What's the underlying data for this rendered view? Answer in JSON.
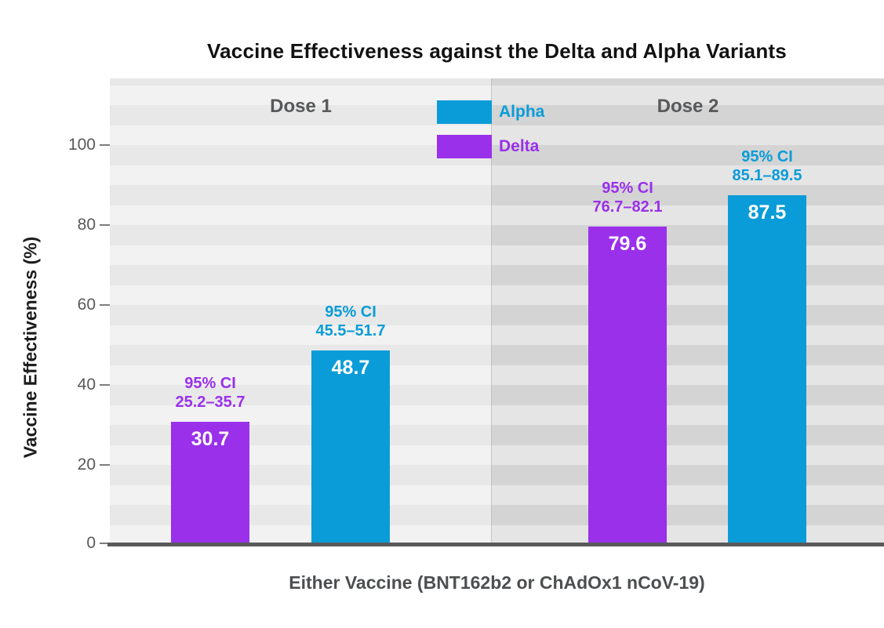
{
  "title": "Vaccine Effectiveness against the Delta and Alpha Variants",
  "axes": {
    "ylabel": "Vaccine Effectiveness (%)",
    "xlabel": "Either Vaccine (BNT162b2 or ChAdOx1 nCoV-19)",
    "yticks": [
      "100",
      "80",
      "60",
      "40",
      "20",
      "0"
    ]
  },
  "panels": [
    {
      "label": "Dose 1"
    },
    {
      "label": "Dose 2"
    }
  ],
  "legend": {
    "items": [
      {
        "label": "Alpha",
        "color": "#0a9cd8"
      },
      {
        "label": "Delta",
        "color": "#9a30ea"
      }
    ]
  },
  "ci_heading": "95% CI",
  "chart_data": {
    "type": "bar",
    "title": "Vaccine Effectiveness against the Delta and Alpha Variants",
    "xlabel": "Either Vaccine (BNT162b2 or ChAdOx1 nCoV-19)",
    "ylabel": "Vaccine Effectiveness (%)",
    "ylim": [
      0,
      100
    ],
    "grid": false,
    "legend_position": "top-center",
    "categories": [
      "Dose 1",
      "Dose 2"
    ],
    "series": [
      {
        "name": "Delta",
        "color": "#9a30ea",
        "values": [
          30.7,
          79.6
        ],
        "ci_95": [
          "25.2–35.7",
          "76.7–82.1"
        ]
      },
      {
        "name": "Alpha",
        "color": "#0a9cd8",
        "values": [
          48.7,
          87.5
        ],
        "ci_95": [
          "45.5–51.7",
          "85.1–89.5"
        ]
      }
    ]
  }
}
